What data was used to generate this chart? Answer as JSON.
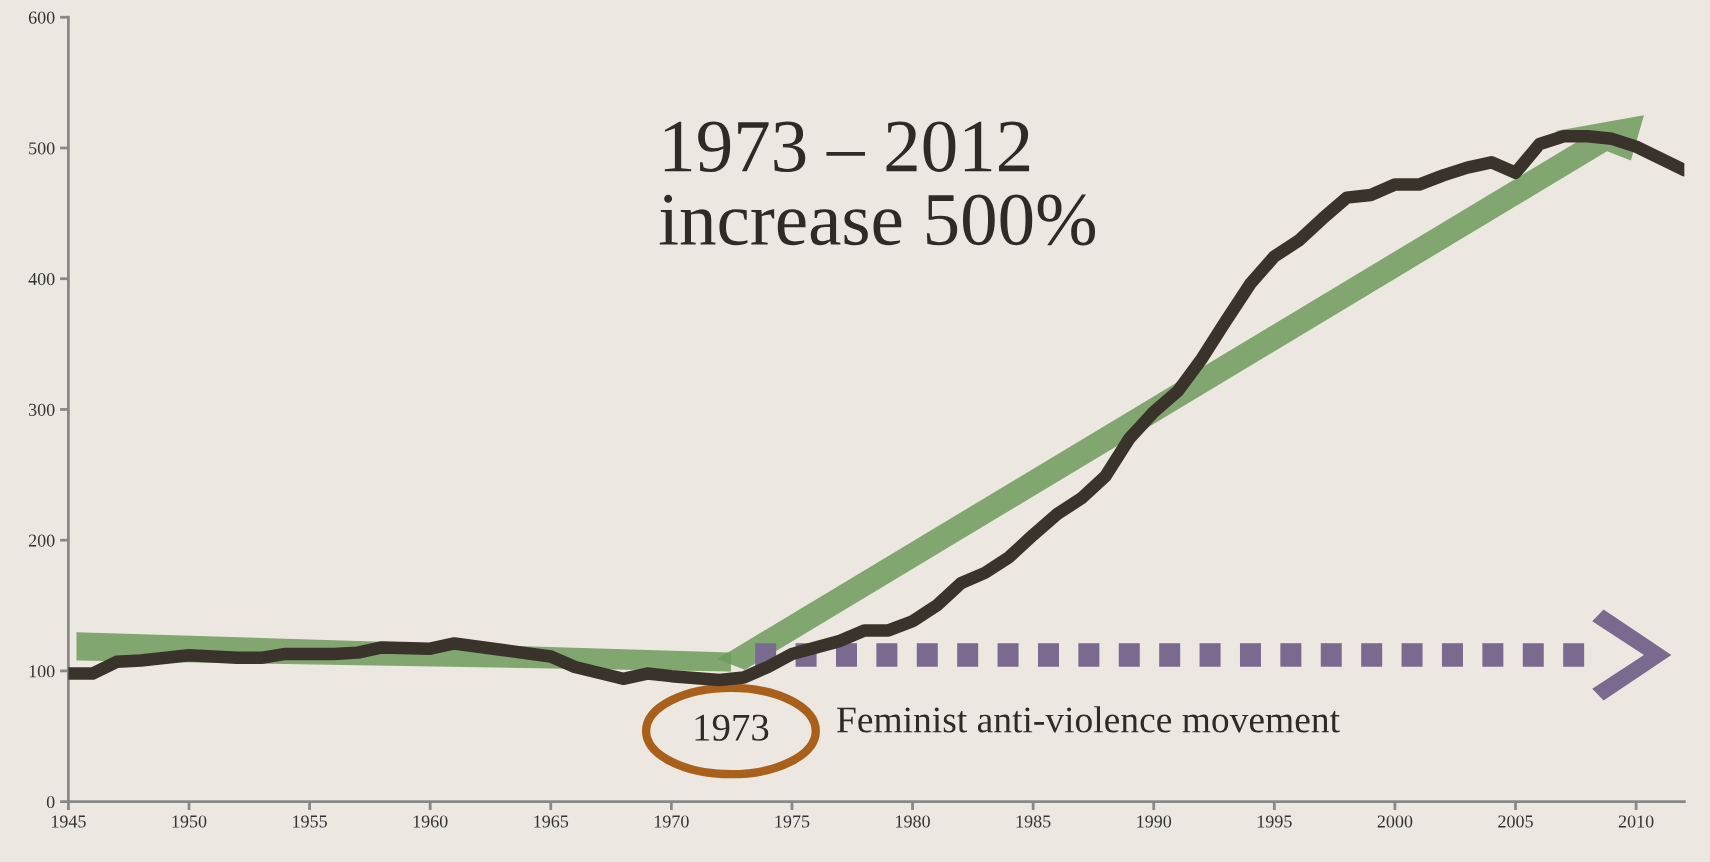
{
  "chart_data": {
    "type": "line",
    "x": [
      1945,
      1946,
      1947,
      1948,
      1950,
      1952,
      1953,
      1954,
      1956,
      1957,
      1958,
      1960,
      1961,
      1963,
      1965,
      1966,
      1968,
      1969,
      1970,
      1972,
      1973,
      1974,
      1975,
      1977,
      1978,
      1979,
      1980,
      1981,
      1982,
      1983,
      1984,
      1985,
      1986,
      1987,
      1988,
      1989,
      1990,
      1991,
      1992,
      1993,
      1994,
      1995,
      1996,
      1997,
      1998,
      1999,
      2000,
      2001,
      2002,
      2003,
      2004,
      2005,
      2006,
      2007,
      2008,
      2009,
      2010,
      2012
    ],
    "series": [
      {
        "color": "#3a332b",
        "values": [
          98,
          98,
          107,
          108,
          112,
          110,
          110,
          113,
          113,
          114,
          118,
          117,
          121,
          116,
          111,
          103,
          94,
          98,
          96,
          93,
          95,
          103,
          113,
          123,
          131,
          131,
          138,
          150,
          167,
          175,
          187,
          204,
          220,
          232,
          249,
          278,
          298,
          314,
          339,
          368,
          396,
          417,
          429,
          446,
          462,
          464,
          472,
          472,
          479,
          485,
          489,
          481,
          503,
          509,
          509,
          507,
          501,
          483
        ]
      }
    ],
    "xlim": [
      1945,
      2012
    ],
    "xticks": [
      1945,
      1950,
      1955,
      1960,
      1965,
      1970,
      1975,
      1980,
      1985,
      1990,
      1995,
      2000,
      2005,
      2010
    ],
    "ylim": [
      0,
      600
    ],
    "yticks": [
      0,
      100,
      200,
      300,
      400,
      500,
      600
    ],
    "grid": false,
    "legend": false,
    "annotations": [
      "1973 – 2012\nincrease 500%",
      "1973",
      "Feminist anti-violence movement"
    ]
  }
}
